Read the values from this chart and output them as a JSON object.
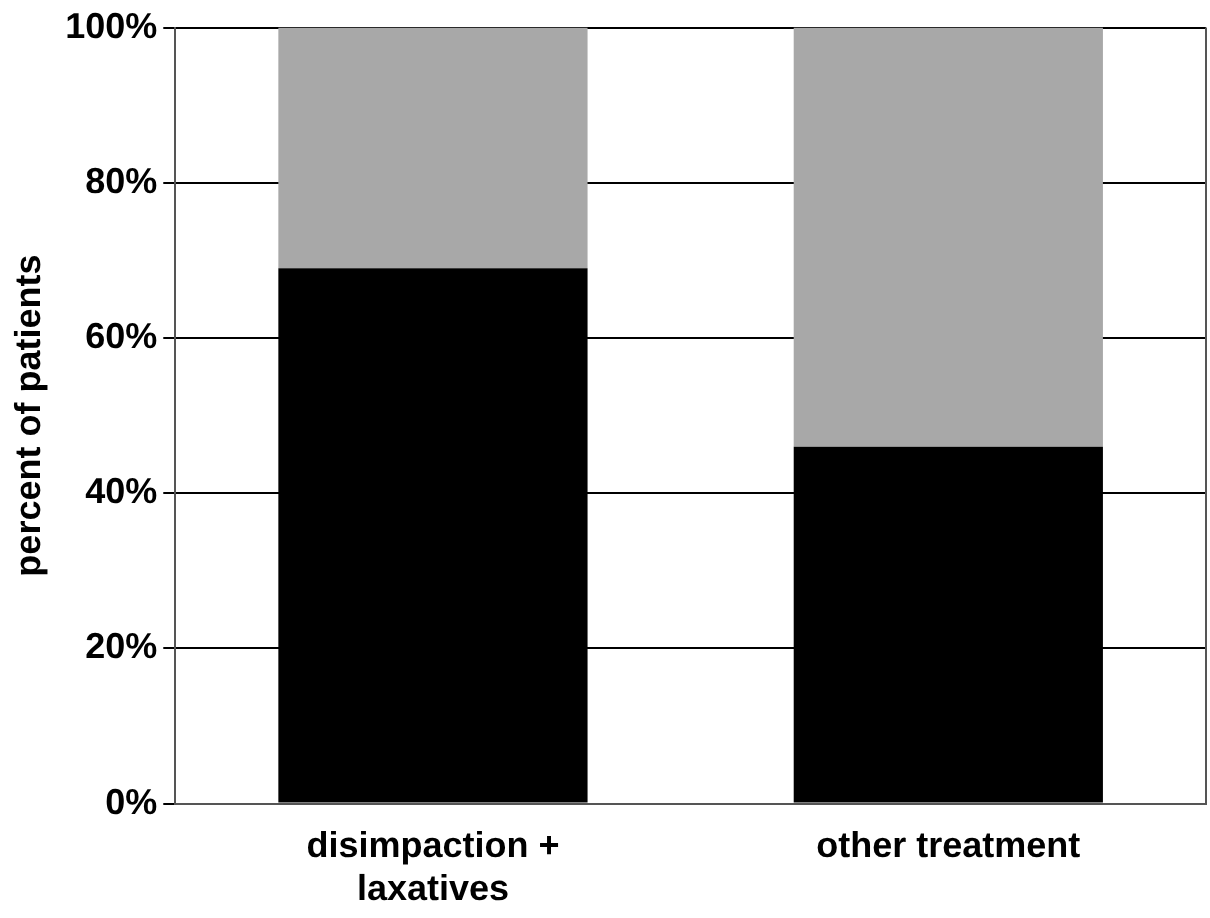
{
  "chart_data": {
    "type": "bar",
    "stacked": true,
    "ylabel": "percent of patients",
    "categories": [
      "disimpaction + laxatives",
      "other treatment"
    ],
    "series": [
      {
        "color": "#000000",
        "values": [
          69,
          46
        ]
      },
      {
        "color": "#a8a8a8",
        "values": [
          31,
          54
        ]
      }
    ],
    "ylim": [
      0,
      100
    ],
    "yticks": [
      {
        "value": 0,
        "label": "0%"
      },
      {
        "value": 20,
        "label": "20%"
      },
      {
        "value": 40,
        "label": "40%"
      },
      {
        "value": 60,
        "label": "60%"
      },
      {
        "value": 80,
        "label": "80%"
      },
      {
        "value": 100,
        "label": "100%"
      }
    ],
    "grid": "y",
    "legend": false
  }
}
